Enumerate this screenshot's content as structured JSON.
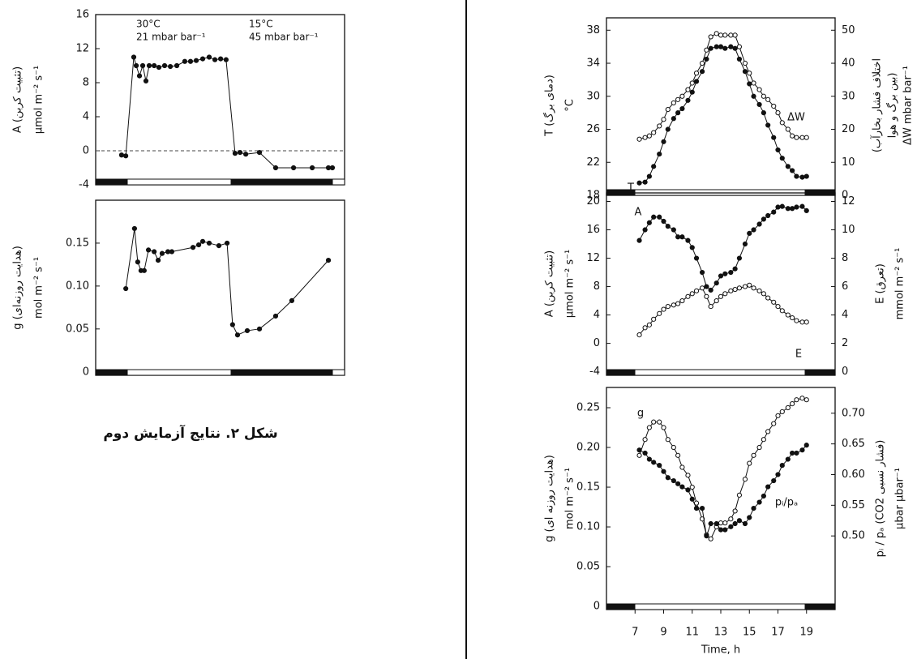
{
  "caption": "شکل ۲. نتایج آزمایش دوم",
  "chart_data": [
    {
      "type": "line",
      "ylabel": [
        "A (تثبیت کربن)",
        "µmol m⁻² s⁻¹"
      ],
      "annotations": [
        "30°C",
        "21 mbar bar⁻¹",
        "15°C",
        "45 mbar bar⁻¹"
      ],
      "xlim": [
        0,
        100
      ],
      "ylim": [
        -4,
        16
      ],
      "yticks": [
        -4,
        0,
        4,
        8,
        12,
        16
      ],
      "hline": 0,
      "x": [
        10.4,
        12.1,
        15.3,
        16.3,
        17.6,
        18.9,
        20.2,
        21.5,
        23.5,
        25.4,
        27.7,
        30,
        32.6,
        35.8,
        38.1,
        40.4,
        43,
        45.6,
        47.9,
        50.2,
        52.4,
        56,
        58,
        60.3,
        65.8,
        72.3,
        79.5,
        87,
        93.5,
        95.1
      ],
      "series": [
        {
          "color": "#111111",
          "marker": "filled",
          "values": [
            -0.5,
            -0.6,
            11,
            10,
            8.8,
            10,
            8.2,
            10,
            10,
            9.8,
            10,
            9.9,
            10,
            10.5,
            10.5,
            10.6,
            10.8,
            11,
            10.7,
            10.8,
            10.7,
            -0.3,
            -0.2,
            -0.4,
            -0.2,
            -2,
            -2,
            -2,
            -2,
            -2
          ]
        }
      ]
    },
    {
      "type": "line",
      "ylabel": [
        "g (هدایت روزنه‌ای)",
        "mol m⁻² s⁻¹"
      ],
      "xlim": [
        0,
        100
      ],
      "ylim": [
        -0.004,
        0.2
      ],
      "yticks": [
        0,
        0.05,
        {
          "value": 0.1,
          "label": "0.10"
        },
        0.15
      ],
      "x": [
        12.1,
        15.6,
        16.9,
        18.2,
        19.5,
        21.2,
        23.5,
        25.1,
        26.7,
        29,
        30.6,
        39.1,
        41.4,
        43,
        45.6,
        49.5,
        52.8,
        55,
        57,
        60.9,
        65.8,
        72.3,
        78.8,
        93.5
      ],
      "series": [
        {
          "color": "#111111",
          "marker": "filled",
          "values": [
            0.097,
            0.167,
            0.128,
            0.118,
            0.118,
            0.142,
            0.14,
            0.13,
            0.138,
            0.14,
            0.14,
            0.145,
            0.148,
            0.152,
            0.15,
            0.147,
            0.15,
            0.055,
            0.043,
            0.048,
            0.05,
            0.065,
            0.083,
            0.13
          ]
        }
      ]
    },
    {
      "type": "line",
      "ylabel": [
        "T (دمای برگ)",
        "°C"
      ],
      "y2label": [
        "(اختلاف فشار بخارآب",
        "بین برگ و هوا)",
        "ΔW  mbar bar⁻¹"
      ],
      "xlim": [
        5,
        21
      ],
      "ylim": [
        18,
        39.5
      ],
      "yticks": [
        18,
        22,
        26,
        30,
        34,
        38
      ],
      "y2lim": [
        0,
        53.75
      ],
      "y2ticks": [
        0,
        10,
        20,
        30,
        40,
        50
      ],
      "x": [
        7.3,
        7.7,
        8,
        8.3,
        8.7,
        9,
        9.3,
        9.7,
        10,
        10.3,
        10.7,
        11,
        11.3,
        11.7,
        12,
        12.3,
        12.7,
        13,
        13.3,
        13.7,
        14,
        14.3,
        14.7,
        15,
        15.3,
        15.7,
        16,
        16.3,
        16.7,
        17,
        17.3,
        17.7,
        18,
        18.3,
        18.7,
        19
      ],
      "series": [
        {
          "name": "T",
          "color": "#111111",
          "marker": "filled",
          "values": [
            19.5,
            19.6,
            20.3,
            21.5,
            23,
            24.5,
            26,
            27.3,
            28,
            28.5,
            29.5,
            30.5,
            31.8,
            33,
            34.5,
            35.8,
            36,
            36,
            35.8,
            36,
            35.8,
            34.5,
            33,
            31.5,
            30,
            29,
            28,
            26.5,
            25,
            23.5,
            22.5,
            21.5,
            21,
            20.3,
            20.2,
            20.3
          ]
        },
        {
          "name": "ΔW",
          "color": "#111111",
          "marker": "open",
          "axis": "y2",
          "values": [
            17,
            17.5,
            18,
            19,
            21,
            23,
            26,
            28,
            29,
            30,
            32,
            34,
            37,
            40,
            44,
            48,
            49,
            48.5,
            48.5,
            48.5,
            48.5,
            45,
            40,
            37,
            34,
            32,
            30,
            29,
            27,
            25,
            22,
            20,
            18,
            17.5,
            17.5,
            17.5
          ]
        }
      ]
    },
    {
      "type": "line",
      "ylabel": [
        "A (تثبیت کربن)",
        "µmol m⁻² s⁻¹"
      ],
      "y2label": [
        "E (تعرق)",
        "mmol m⁻² s⁻¹"
      ],
      "xlim": [
        5,
        21
      ],
      "ylim": [
        -4.5,
        21.2
      ],
      "yticks": [
        -4,
        0,
        4,
        8,
        12,
        16,
        20
      ],
      "y2lim": [
        -0.25,
        12.6
      ],
      "y2ticks": [
        0,
        2,
        4,
        6,
        8,
        10,
        12
      ],
      "x": [
        7.3,
        7.7,
        8,
        8.3,
        8.7,
        9,
        9.3,
        9.7,
        10,
        10.3,
        10.7,
        11,
        11.3,
        11.7,
        12,
        12.3,
        12.7,
        13,
        13.3,
        13.7,
        14,
        14.3,
        14.7,
        15,
        15.3,
        15.7,
        16,
        16.3,
        16.7,
        17,
        17.3,
        17.7,
        18,
        18.3,
        18.7,
        19
      ],
      "series": [
        {
          "name": "A",
          "color": "#111111",
          "marker": "filled",
          "values": [
            14.5,
            16,
            17,
            17.8,
            17.8,
            17.2,
            16.5,
            16,
            15,
            15,
            14.5,
            13.5,
            12,
            10,
            8,
            7.5,
            8.5,
            9.5,
            9.8,
            10,
            10.5,
            12,
            14,
            15.5,
            16,
            16.8,
            17.5,
            18,
            18.5,
            19.2,
            19.3,
            19,
            19,
            19.2,
            19.3,
            18.7
          ]
        },
        {
          "name": "E",
          "color": "#111111",
          "marker": "open",
          "axis": "y2",
          "values": [
            2.6,
            3.1,
            3.3,
            3.7,
            4.1,
            4.4,
            4.6,
            4.7,
            4.8,
            5,
            5.3,
            5.5,
            5.7,
            5.9,
            5.3,
            4.6,
            5,
            5.3,
            5.5,
            5.7,
            5.8,
            5.9,
            6,
            6.1,
            5.9,
            5.7,
            5.5,
            5.2,
            4.9,
            4.6,
            4.3,
            4,
            3.8,
            3.6,
            3.5,
            3.5
          ]
        }
      ]
    },
    {
      "type": "line",
      "ylabel": [
        "g (هدایت روزنه ای)",
        "mol m⁻² s⁻¹"
      ],
      "y2label": [
        "pᵢ / pₐ (CO2 فشار نسبی)",
        "µbar µbar⁻¹"
      ],
      "xlabel": "Time, h",
      "xlim": [
        5,
        21
      ],
      "xticks": [
        7,
        9,
        11,
        13,
        15,
        17,
        19
      ],
      "ylim": [
        -0.004,
        0.2755
      ],
      "yticks": [
        0,
        0.05,
        {
          "value": 0.1,
          "label": "0.10"
        },
        0.15,
        {
          "value": 0.2,
          "label": "0.20"
        },
        0.25
      ],
      "y2lim": [
        0.38,
        0.742
      ],
      "y2ticks": [
        {
          "value": 0.5,
          "label": "0.50"
        },
        0.55,
        {
          "value": 0.6,
          "label": "0.60"
        },
        0.65,
        {
          "value": 0.7,
          "label": "0.70"
        }
      ],
      "x": [
        7.3,
        7.7,
        8,
        8.3,
        8.7,
        9,
        9.3,
        9.7,
        10,
        10.3,
        10.7,
        11,
        11.3,
        11.7,
        12,
        12.3,
        12.7,
        13,
        13.3,
        13.7,
        14,
        14.3,
        14.7,
        15,
        15.3,
        15.7,
        16,
        16.3,
        16.7,
        17,
        17.3,
        17.7,
        18,
        18.3,
        18.7,
        19
      ],
      "series": [
        {
          "name": "g",
          "color": "#111111",
          "marker": "open",
          "values": [
            0.19,
            0.21,
            0.225,
            0.232,
            0.232,
            0.225,
            0.21,
            0.2,
            0.19,
            0.175,
            0.165,
            0.15,
            0.13,
            0.11,
            0.09,
            0.085,
            0.1,
            0.105,
            0.105,
            0.11,
            0.12,
            0.14,
            0.16,
            0.18,
            0.19,
            0.2,
            0.21,
            0.22,
            0.23,
            0.24,
            0.245,
            0.25,
            0.255,
            0.26,
            0.262,
            0.26
          ]
        },
        {
          "name": "pᵢ/pₐ",
          "color": "#111111",
          "marker": "filled",
          "axis": "y2",
          "values": [
            0.64,
            0.635,
            0.625,
            0.62,
            0.615,
            0.605,
            0.595,
            0.59,
            0.585,
            0.58,
            0.575,
            0.56,
            0.545,
            0.545,
            0.5,
            0.52,
            0.52,
            0.51,
            0.51,
            0.515,
            0.52,
            0.525,
            0.52,
            0.53,
            0.545,
            0.555,
            0.565,
            0.58,
            0.59,
            0.6,
            0.615,
            0.625,
            0.635,
            0.635,
            0.64,
            0.648
          ]
        }
      ]
    }
  ]
}
